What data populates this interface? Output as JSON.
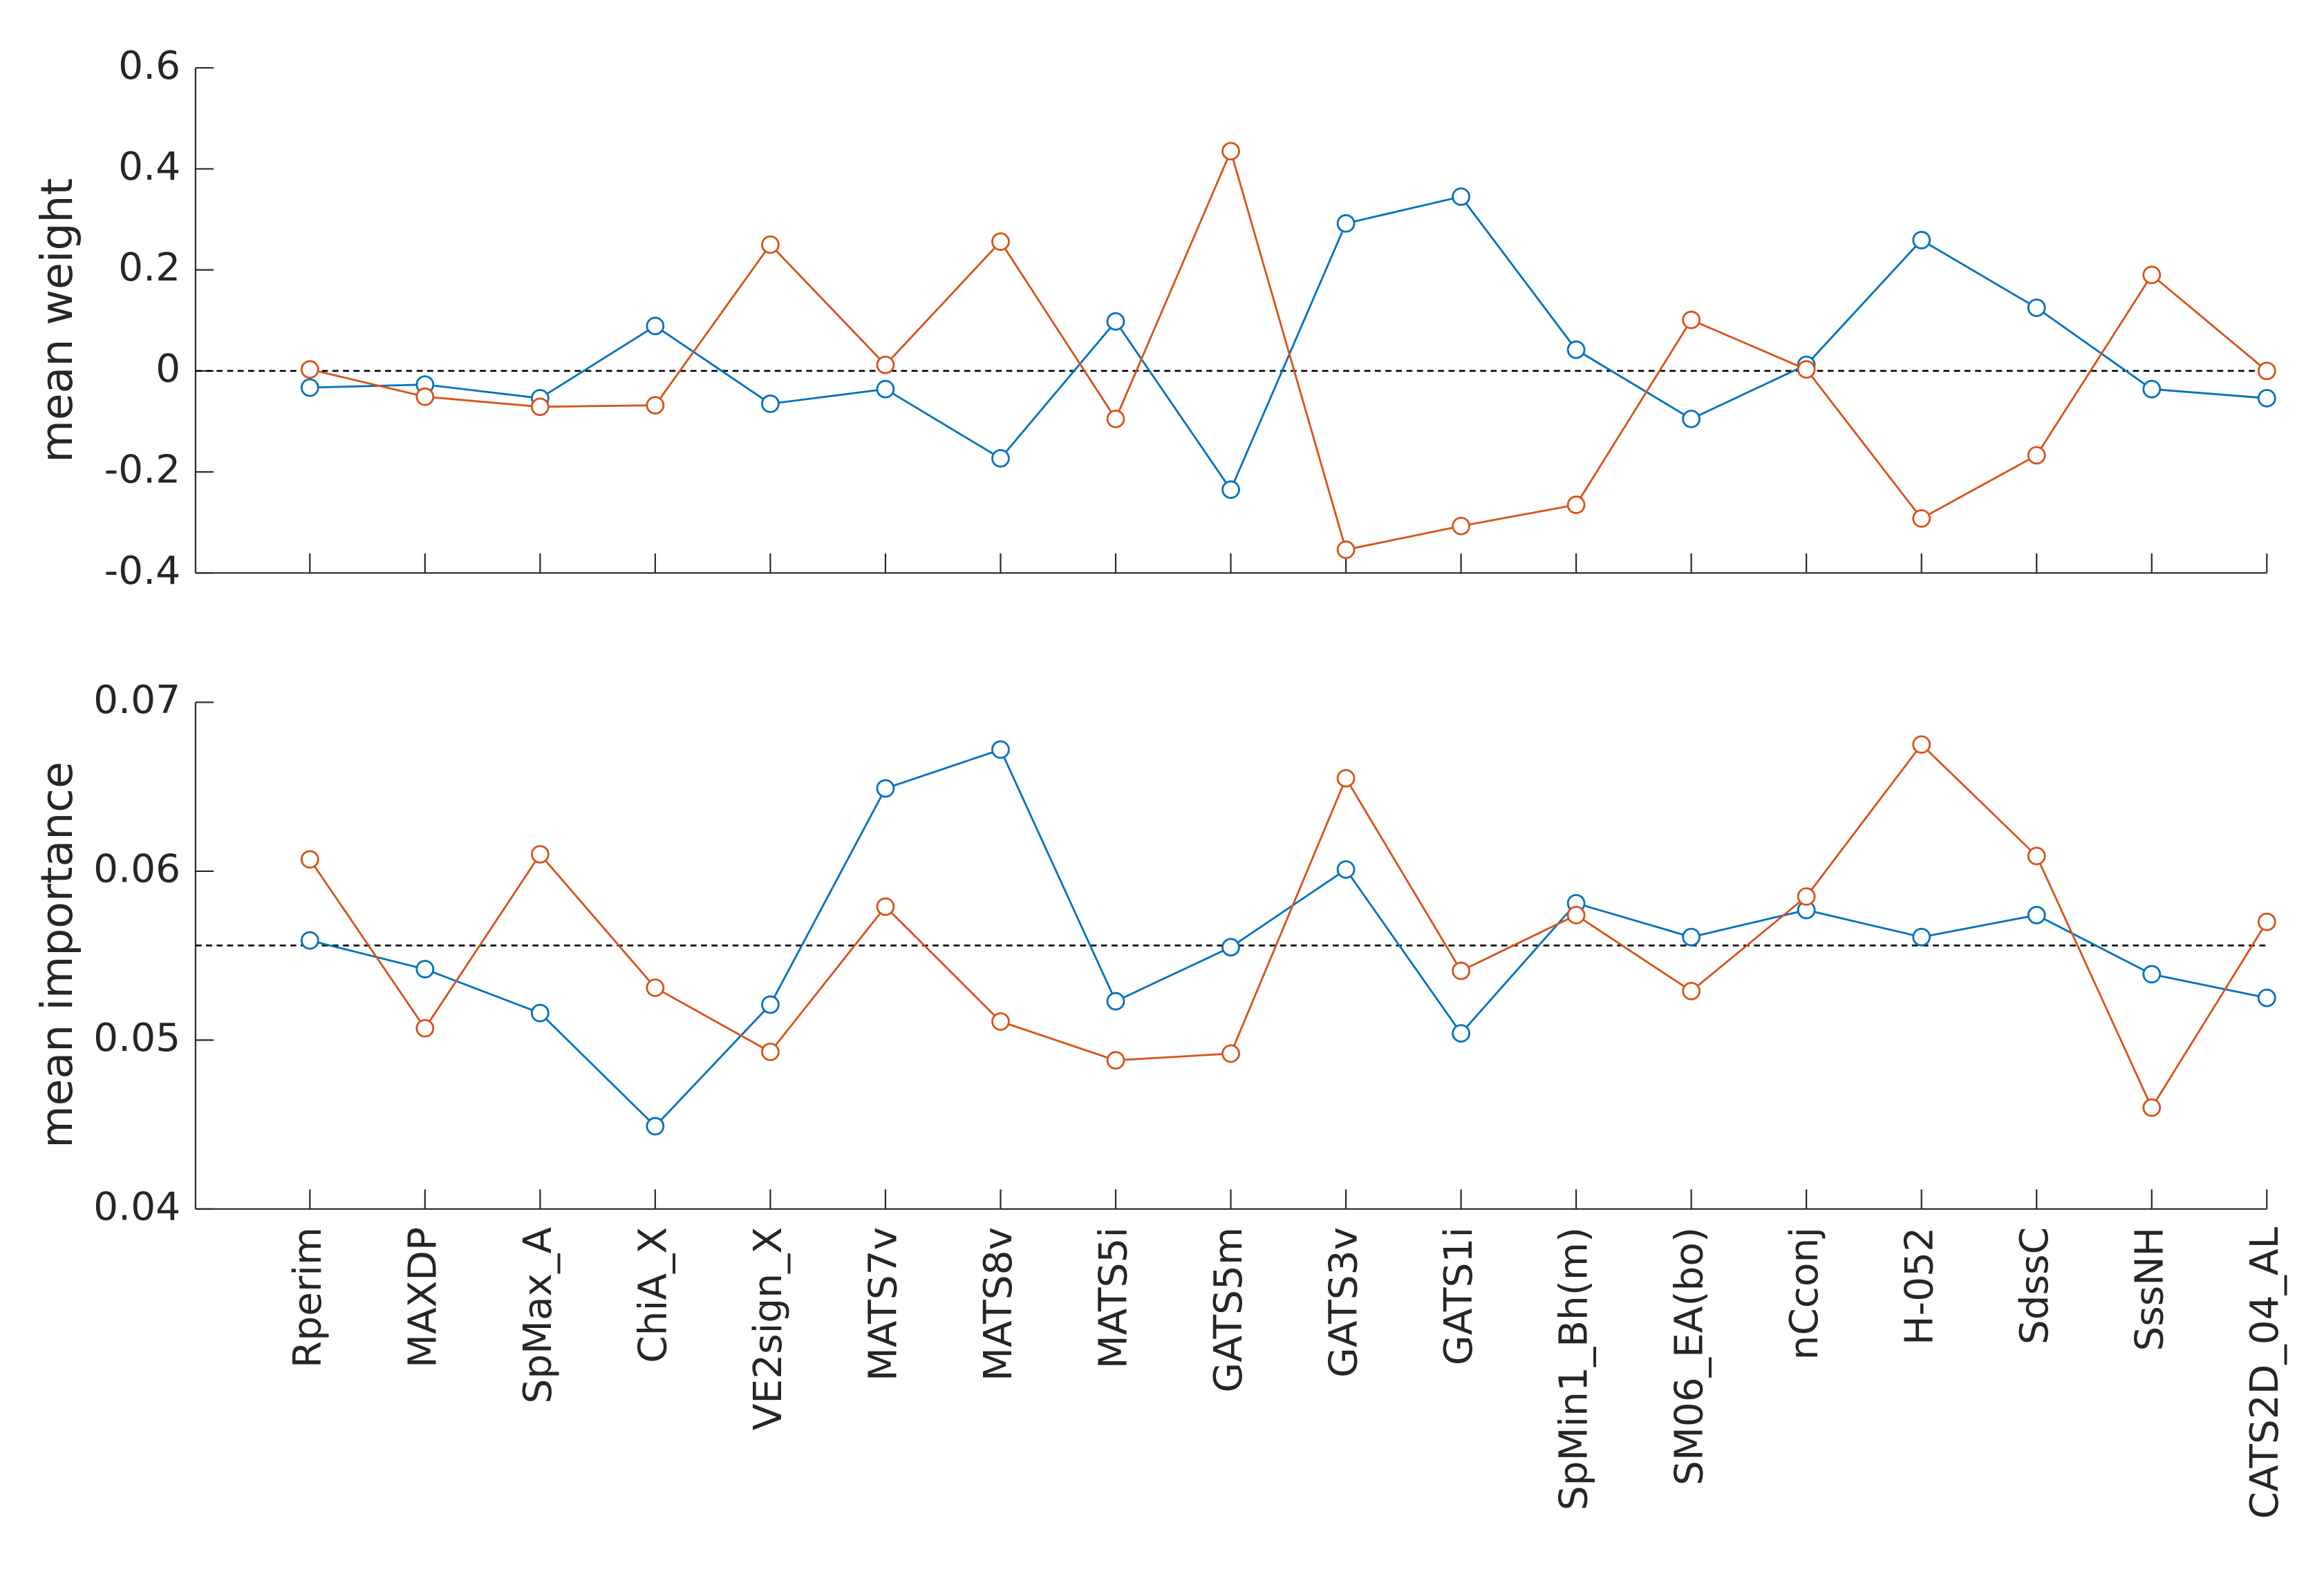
{
  "chart_data": [
    {
      "type": "line",
      "ylabel": "mean weight",
      "ylim": [
        -0.4,
        0.6
      ],
      "yticks": [
        -0.4,
        -0.2,
        0,
        0.2,
        0.4,
        0.6
      ],
      "hline": 0,
      "series": [
        {
          "color": "#0072bd",
          "values": [
            -0.033,
            -0.027,
            -0.054,
            0.089,
            -0.065,
            -0.036,
            -0.173,
            0.098,
            -0.235,
            0.292,
            0.345,
            0.042,
            -0.095,
            0.012,
            0.259,
            0.125,
            -0.036,
            -0.054
          ]
        },
        {
          "color": "#d95319",
          "values": [
            0.003,
            -0.051,
            -0.071,
            -0.068,
            0.25,
            0.012,
            0.256,
            -0.095,
            0.435,
            -0.354,
            -0.307,
            -0.265,
            0.101,
            0.003,
            -0.292,
            -0.167,
            0.19,
            0
          ]
        }
      ]
    },
    {
      "type": "line",
      "ylabel": "mean importance",
      "categories": [
        "Rperim",
        "MAXDP",
        "SpMax_A",
        "ChiA_X",
        "VE2sign_X",
        "MATS7v",
        "MATS8v",
        "MATS5i",
        "GATS5m",
        "GATS3v",
        "GATS1i",
        "SpMin1_Bh(m)",
        "SM06_EA(bo)",
        "nCconj",
        "H-052",
        "SdssC",
        "SssNH",
        "CATS2D_04_AL"
      ],
      "ylim": [
        0.04,
        0.07
      ],
      "yticks": [
        0.04,
        0.05,
        0.06,
        0.07
      ],
      "hline": 0.0556,
      "series": [
        {
          "color": "#0072bd",
          "values": [
            0.0559,
            0.0542,
            0.0516,
            0.0449,
            0.0521,
            0.0649,
            0.0672,
            0.0523,
            0.0555,
            0.0601,
            0.0504,
            0.0581,
            0.0561,
            0.0577,
            0.0561,
            0.0574,
            0.0539,
            0.0525
          ]
        },
        {
          "color": "#d95319",
          "values": [
            0.0607,
            0.0507,
            0.061,
            0.0531,
            0.0493,
            0.0579,
            0.0511,
            0.0488,
            0.0492,
            0.0655,
            0.0541,
            0.0574,
            0.0529,
            0.0585,
            0.0675,
            0.0609,
            0.046,
            0.057
          ]
        }
      ]
    }
  ]
}
